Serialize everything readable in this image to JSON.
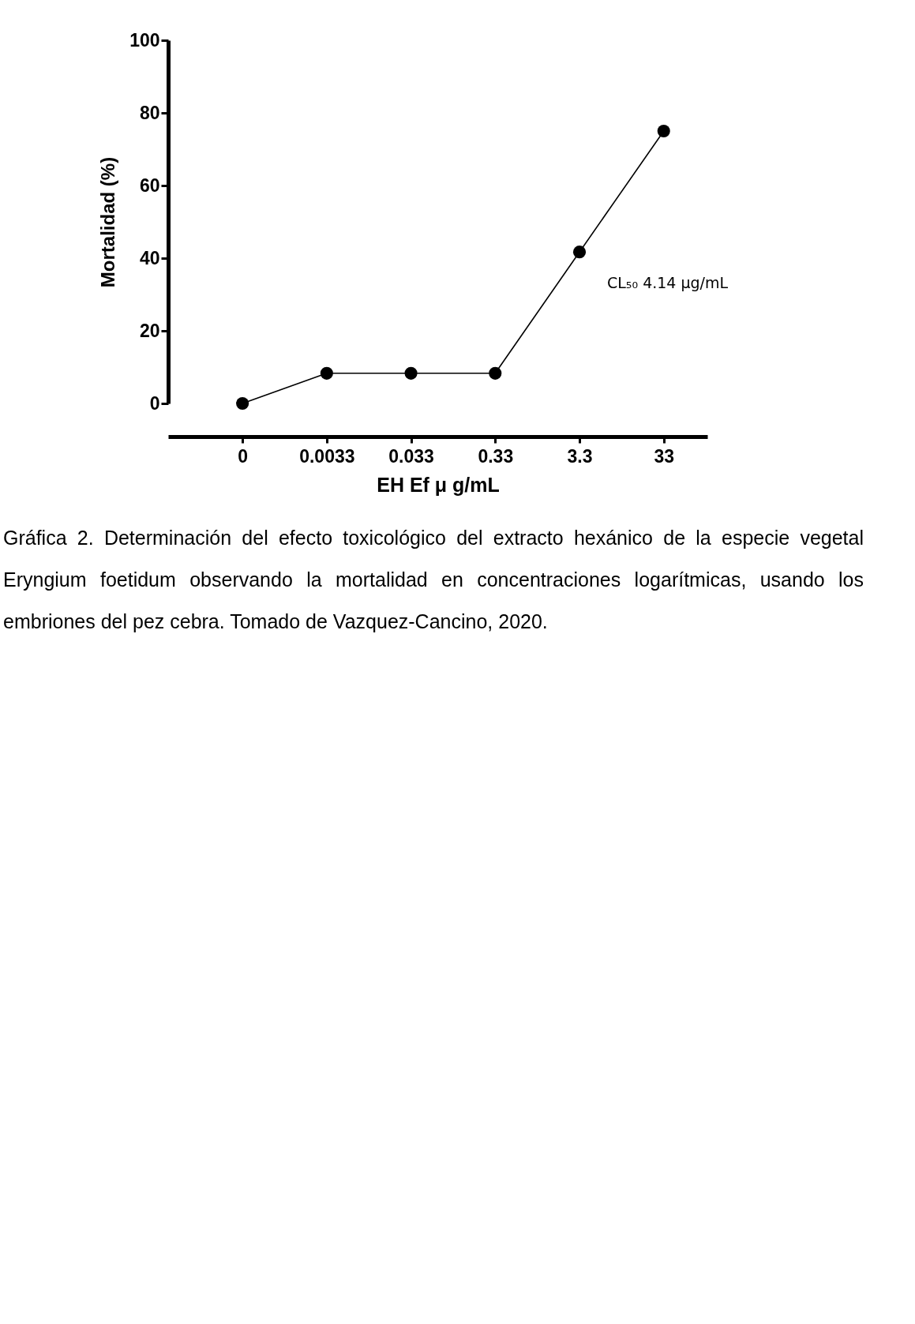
{
  "chart_data": {
    "type": "line",
    "xlabel": "EH Ef μ g/mL",
    "ylabel": "Mortalidad (%)",
    "categories": [
      "0",
      "0.0033",
      "0.033",
      "0.33",
      "3.3",
      "33"
    ],
    "series": [
      {
        "color": "#000000",
        "values": [
          0,
          8.3,
          8.3,
          8.3,
          41.7,
          75
        ]
      }
    ],
    "ylim": [
      0,
      100
    ],
    "yticks": [
      0,
      20,
      40,
      60,
      80,
      100
    ],
    "grid": false,
    "legend": false,
    "marker": "circle",
    "line_style": "solid",
    "annotations": [
      "CL₅₀ 4.14 µg/mL",
      "Gráfica 2. Determinación del efecto toxicológico del extracto hexánico de la especie vegetal Eryngium foetidum observando la mortalidad en concentraciones logarítmicas, usando los embriones del pez cebra. Tomado de Vazquez-Cancino, 2020."
    ]
  }
}
